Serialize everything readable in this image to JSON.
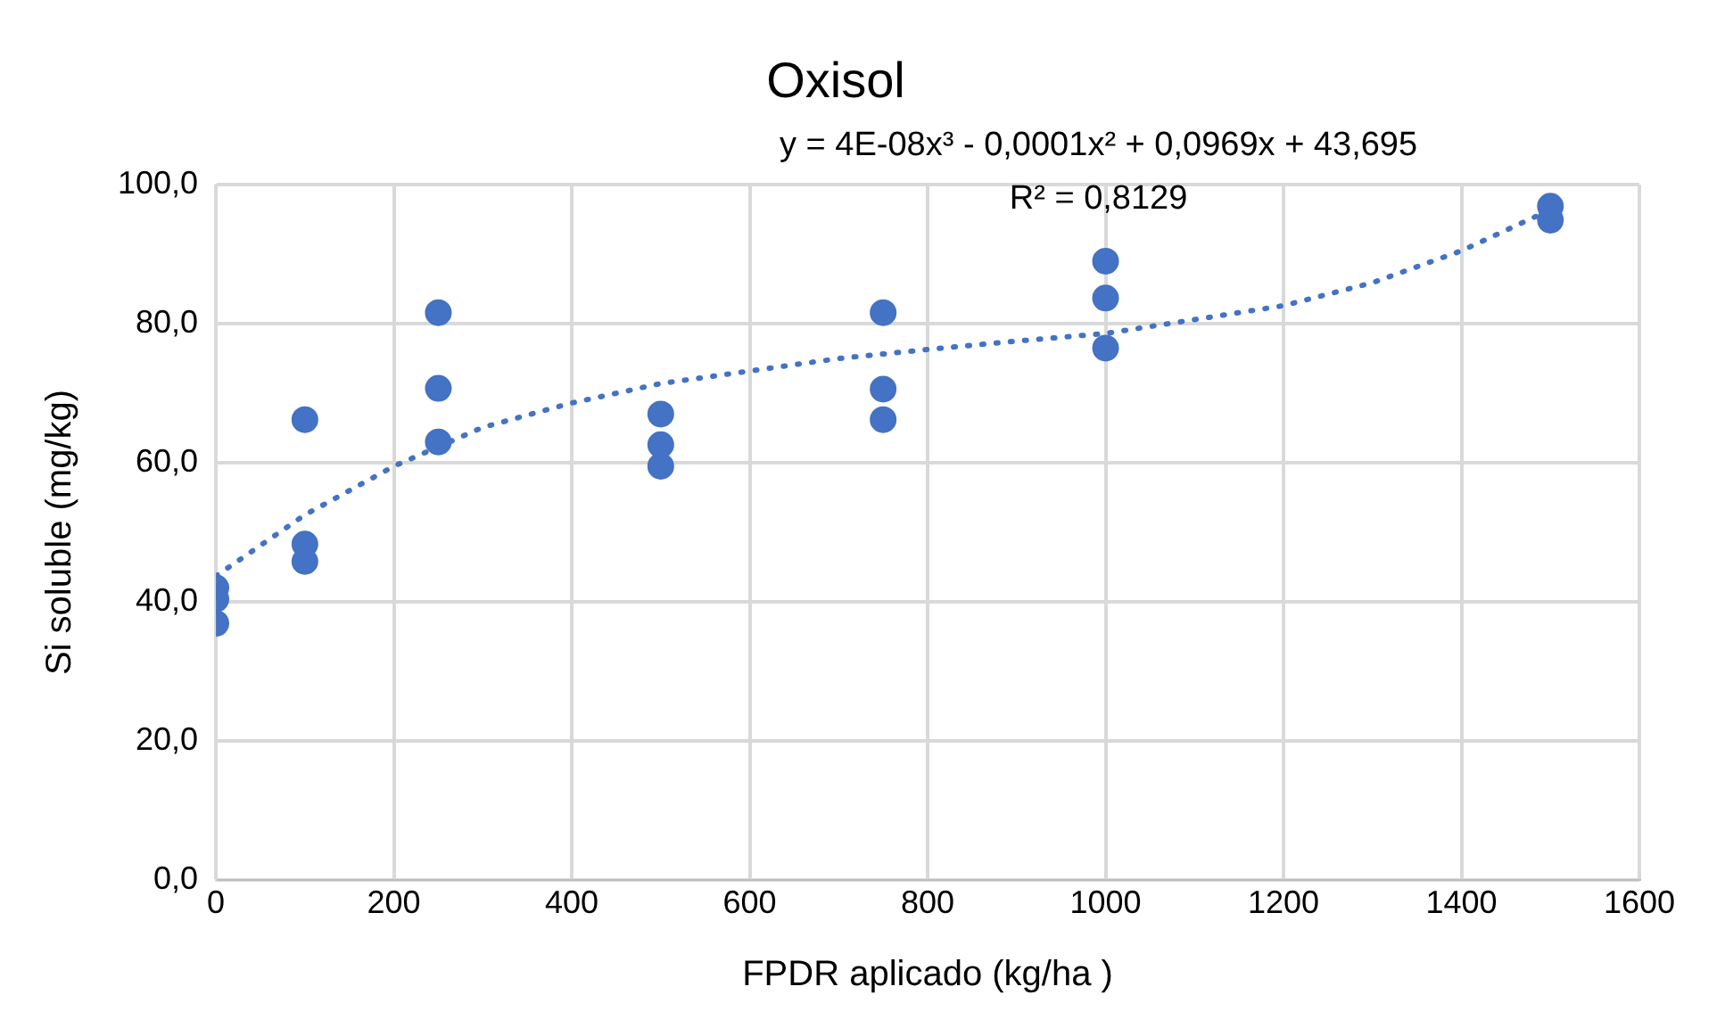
{
  "chart_data": {
    "type": "scatter",
    "title": "Oxisol",
    "xlabel": "FPDR aplicado (kg/ha )",
    "ylabel": "Si soluble (mg/kg)",
    "annotations": [
      "y = 4E-08x³ - 0,0001x² + 0,0969x + 43,695",
      "R² = 0,8129"
    ],
    "series": [
      {
        "color": "#4472c4",
        "marker": "circle",
        "x": [
          0,
          0,
          0,
          100,
          100,
          100,
          250,
          250,
          250,
          500,
          500,
          500,
          750,
          750,
          750,
          1000,
          1000,
          1000,
          1500,
          1500
        ],
        "values": [
          42.0,
          40.4,
          36.9,
          66.2,
          48.3,
          45.8,
          81.6,
          70.7,
          63.0,
          67.0,
          62.6,
          59.5,
          81.6,
          70.6,
          66.2,
          89.0,
          83.7,
          76.5,
          96.9,
          94.9
        ]
      },
      {
        "type": "line",
        "color": "#4472c4",
        "marker": "none",
        "line_style": "dotted",
        "x": [
          0,
          100,
          200,
          300,
          400,
          500,
          600,
          700,
          800,
          900,
          1000,
          1100,
          1200,
          1300,
          1400,
          1500
        ],
        "values": [
          43.7,
          52.5,
          59.5,
          65.1,
          68.6,
          71.4,
          73.2,
          75.0,
          76.3,
          77.5,
          78.6,
          80.6,
          82.6,
          85.9,
          90.5,
          96.4
        ]
      }
    ],
    "xlim": [
      0,
      1600
    ],
    "xticks": [
      0,
      200,
      400,
      600,
      800,
      1000,
      1200,
      1400,
      1600
    ],
    "ylim": [
      0,
      100
    ],
    "yticks": [
      {
        "value": 0,
        "label": "0,0"
      },
      {
        "value": 20,
        "label": "20,0"
      },
      {
        "value": 40,
        "label": "40,0"
      },
      {
        "value": 60,
        "label": "60,0"
      },
      {
        "value": 80,
        "label": "80,0"
      },
      {
        "value": 100,
        "label": "100,0"
      }
    ],
    "grid": true,
    "legend": false
  }
}
